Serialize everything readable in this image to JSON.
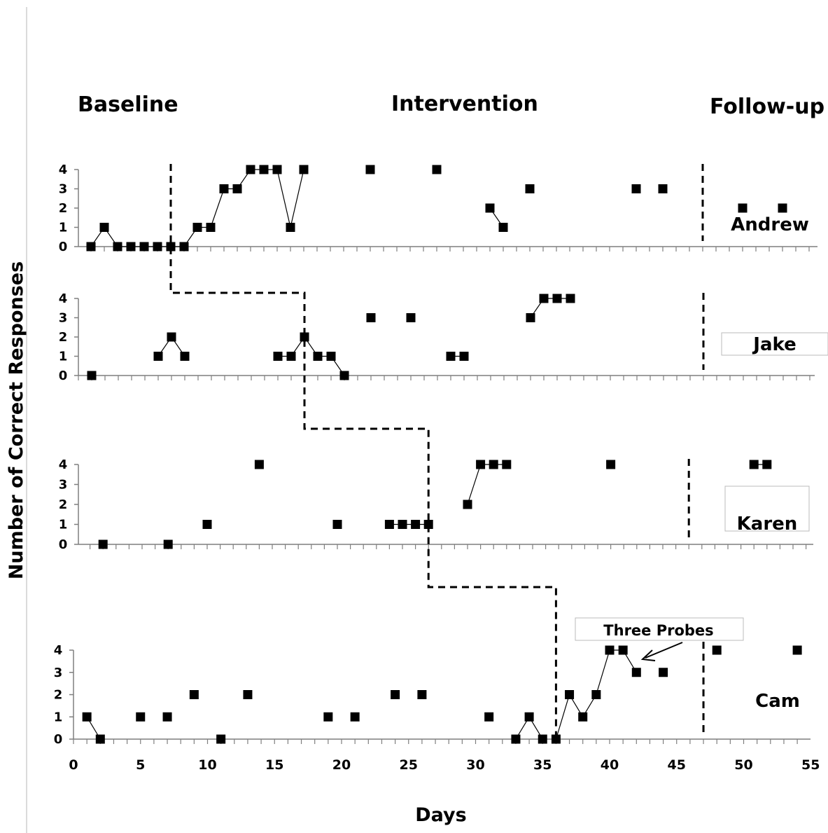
{
  "chart_data": {
    "type": "scatter",
    "title": "",
    "xlabel": "Days",
    "ylabel": "Number of Correct Responses",
    "phases": [
      "Baseline",
      "Intervention",
      "Follow-up"
    ],
    "x_ticks": [
      0,
      5,
      10,
      15,
      20,
      25,
      30,
      35,
      40,
      45,
      50,
      55
    ],
    "xlim": [
      0,
      55
    ],
    "y_ticks": [
      0,
      1,
      2,
      3,
      4
    ],
    "ylim": [
      0,
      4
    ],
    "marker_color": "#000000",
    "annotation": "Three Probes",
    "panels": [
      {
        "name": "Andrew",
        "intervention_start": 7,
        "followup_start": 47,
        "points": [
          [
            1,
            0
          ],
          [
            2,
            1
          ],
          [
            3,
            0
          ],
          [
            4,
            0
          ],
          [
            5,
            0
          ],
          [
            6,
            0
          ],
          [
            7,
            0
          ],
          [
            8,
            0
          ],
          [
            9,
            1
          ],
          [
            10,
            1
          ],
          [
            11,
            3
          ],
          [
            12,
            3
          ],
          [
            13,
            4
          ],
          [
            14,
            4
          ],
          [
            15,
            4
          ],
          [
            16,
            1
          ],
          [
            17,
            4
          ],
          [
            22,
            4
          ],
          [
            27,
            4
          ],
          [
            31,
            2
          ],
          [
            32,
            1
          ],
          [
            34,
            3
          ],
          [
            42,
            3
          ],
          [
            44,
            3
          ],
          [
            50,
            2
          ],
          [
            53,
            2
          ]
        ],
        "connected_segments": [
          [
            1,
            2,
            3,
            4,
            5,
            6,
            7,
            8,
            9,
            10,
            11,
            12,
            13,
            14,
            15,
            16,
            17
          ],
          [
            31,
            32
          ]
        ]
      },
      {
        "name": "Jake",
        "intervention_start": 17,
        "followup_start": 47,
        "points": [
          [
            1,
            0
          ],
          [
            6,
            1
          ],
          [
            7,
            2
          ],
          [
            8,
            1
          ],
          [
            15,
            1
          ],
          [
            16,
            1
          ],
          [
            17,
            2
          ],
          [
            18,
            1
          ],
          [
            19,
            1
          ],
          [
            20,
            0
          ],
          [
            22,
            3
          ],
          [
            25,
            3
          ],
          [
            28,
            1
          ],
          [
            29,
            1
          ],
          [
            34,
            3
          ],
          [
            35,
            4
          ],
          [
            36,
            4
          ],
          [
            37,
            4
          ]
        ],
        "connected_segments": [
          [
            6,
            7,
            8
          ],
          [
            15,
            16,
            17,
            18,
            19,
            20
          ],
          [
            28,
            29
          ],
          [
            34,
            35,
            36,
            37
          ]
        ]
      },
      {
        "name": "Karen",
        "intervention_start": 27,
        "followup_start": 47,
        "points": [
          [
            2,
            0
          ],
          [
            7,
            0
          ],
          [
            10,
            1
          ],
          [
            14,
            4
          ],
          [
            20,
            1
          ],
          [
            24,
            1
          ],
          [
            25,
            1
          ],
          [
            26,
            1
          ],
          [
            27,
            1
          ],
          [
            30,
            2
          ],
          [
            31,
            4
          ],
          [
            32,
            4
          ],
          [
            33,
            4
          ],
          [
            41,
            4
          ],
          [
            52,
            4
          ],
          [
            53,
            4
          ]
        ],
        "connected_segments": [
          [
            24,
            25,
            26,
            27
          ],
          [
            30,
            31,
            32,
            33
          ],
          [
            52,
            53
          ]
        ]
      },
      {
        "name": "Cam",
        "intervention_start": 36,
        "followup_start": 47,
        "points": [
          [
            1,
            1
          ],
          [
            2,
            0
          ],
          [
            5,
            1
          ],
          [
            7,
            1
          ],
          [
            9,
            2
          ],
          [
            11,
            0
          ],
          [
            13,
            2
          ],
          [
            19,
            1
          ],
          [
            21,
            1
          ],
          [
            24,
            2
          ],
          [
            26,
            2
          ],
          [
            31,
            1
          ],
          [
            33,
            0
          ],
          [
            34,
            1
          ],
          [
            35,
            0
          ],
          [
            36,
            0
          ],
          [
            37,
            2
          ],
          [
            38,
            1
          ],
          [
            39,
            2
          ],
          [
            40,
            4
          ],
          [
            41,
            4
          ],
          [
            42,
            3
          ],
          [
            44,
            3
          ],
          [
            48,
            4
          ],
          [
            54,
            4
          ]
        ],
        "connected_segments": [
          [
            1,
            2
          ],
          [
            33,
            34,
            35
          ],
          [
            36,
            37,
            38,
            39,
            40,
            41,
            42
          ]
        ]
      }
    ]
  }
}
